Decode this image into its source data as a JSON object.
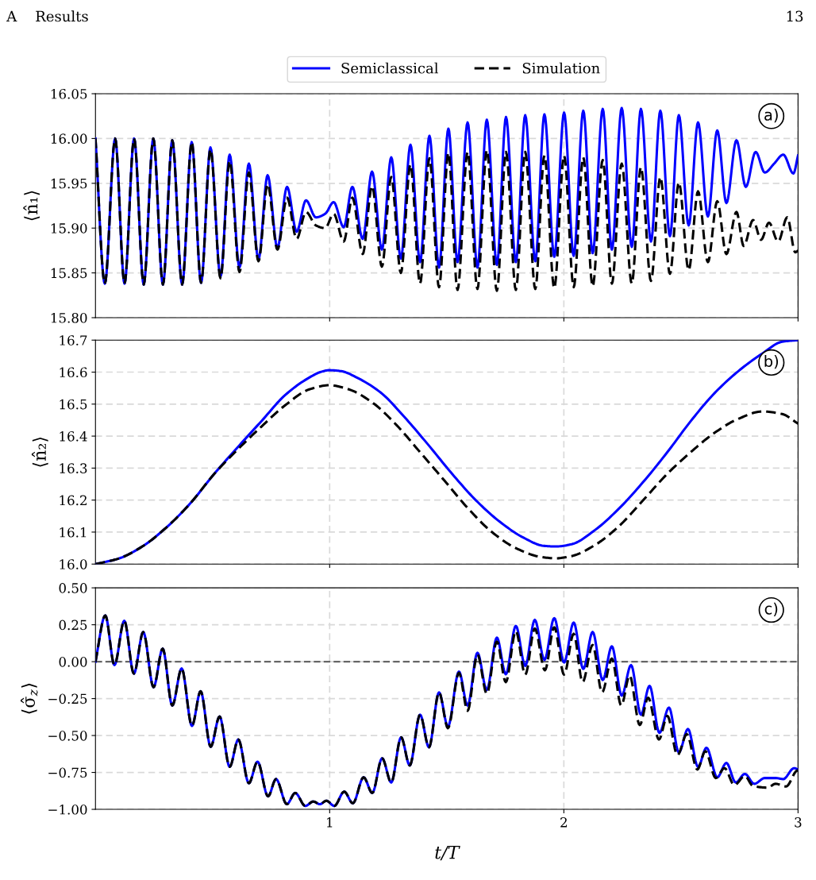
{
  "chart_data": [
    {
      "type": "line",
      "ylabel": "⟨n̂₁⟩",
      "annotations": [
        "A    Results",
        "13",
        "a)"
      ],
      "legend": "top",
      "grid": true,
      "tick_labels": "y",
      "xlim": [
        0,
        3
      ],
      "xticks": [
        1,
        2,
        3
      ],
      "ylim": [
        15.8,
        16.05
      ],
      "yticks": [
        {
          "value": 15.8,
          "label": "15.80"
        },
        {
          "value": 15.85,
          "label": "15.85"
        },
        {
          "value": 15.9,
          "label": "15.90"
        },
        {
          "value": 15.95,
          "label": "15.95"
        },
        {
          "value": 16.0,
          "label": "16.00"
        },
        {
          "value": 16.05,
          "label": "16.05"
        }
      ],
      "series": [
        {
          "name": "Semiclassical",
          "color": "#0000ff",
          "line_style": "solid",
          "x": [
            0,
            0.04,
            0.084,
            0.124,
            0.165,
            0.206,
            0.247,
            0.288,
            0.328,
            0.37,
            0.411,
            0.451,
            0.491,
            0.534,
            0.573,
            0.615,
            0.655,
            0.696,
            0.735,
            0.777,
            0.818,
            0.859,
            0.899,
            0.941,
            0.981,
            1.017,
            1.06,
            1.097,
            1.141,
            1.181,
            1.223,
            1.263,
            1.304,
            1.345,
            1.386,
            1.426,
            1.467,
            1.507,
            1.546,
            1.589,
            1.631,
            1.671,
            1.714,
            1.753,
            1.795,
            1.835,
            1.878,
            1.917,
            1.959,
            2.001,
            2.042,
            2.083,
            2.123,
            2.166,
            2.205,
            2.247,
            2.29,
            2.329,
            2.372,
            2.412,
            2.453,
            2.491,
            2.533,
            2.573,
            2.615,
            2.655,
            2.694,
            2.737,
            2.777,
            2.819,
            2.858,
            2.898,
            2.937,
            2.98,
            3.0
          ],
          "values": [
            16.0,
            15.838,
            16.0,
            15.838,
            16.0,
            15.837,
            16.0,
            15.837,
            15.998,
            15.837,
            15.996,
            15.839,
            15.99,
            15.846,
            15.982,
            15.856,
            15.972,
            15.865,
            15.959,
            15.878,
            15.946,
            15.896,
            15.931,
            15.912,
            15.916,
            15.929,
            15.901,
            15.946,
            15.888,
            15.963,
            15.876,
            15.979,
            15.866,
            15.993,
            15.862,
            16.003,
            15.856,
            16.011,
            15.862,
            16.018,
            15.856,
            16.021,
            15.859,
            16.024,
            15.862,
            16.026,
            15.863,
            16.027,
            15.868,
            16.029,
            15.869,
            16.031,
            15.872,
            16.033,
            15.876,
            16.034,
            15.879,
            16.033,
            15.885,
            16.031,
            15.891,
            16.026,
            15.903,
            16.018,
            15.913,
            16.009,
            15.928,
            15.998,
            15.946,
            15.985,
            15.962,
            15.972,
            15.982,
            15.961,
            15.981
          ]
        },
        {
          "name": "Simulation",
          "color": "#000000",
          "line_style": "dashed",
          "x": [
            0,
            0.04,
            0.084,
            0.124,
            0.165,
            0.206,
            0.247,
            0.288,
            0.328,
            0.37,
            0.411,
            0.451,
            0.491,
            0.534,
            0.573,
            0.615,
            0.655,
            0.696,
            0.735,
            0.777,
            0.818,
            0.859,
            0.899,
            0.941,
            0.981,
            1.017,
            1.06,
            1.097,
            1.141,
            1.181,
            1.223,
            1.263,
            1.304,
            1.345,
            1.386,
            1.426,
            1.467,
            1.507,
            1.546,
            1.589,
            1.631,
            1.671,
            1.714,
            1.753,
            1.795,
            1.835,
            1.878,
            1.917,
            1.959,
            2.001,
            2.042,
            2.083,
            2.123,
            2.166,
            2.205,
            2.247,
            2.29,
            2.329,
            2.372,
            2.412,
            2.453,
            2.491,
            2.533,
            2.573,
            2.615,
            2.655,
            2.694,
            2.737,
            2.768,
            2.808,
            2.842,
            2.876,
            2.915,
            2.954,
            2.988,
            3.0
          ],
          "values": [
            16.0,
            15.838,
            16.0,
            15.838,
            16.0,
            15.837,
            16.0,
            15.837,
            15.998,
            15.837,
            15.996,
            15.839,
            15.988,
            15.844,
            15.975,
            15.851,
            15.962,
            15.863,
            15.949,
            15.876,
            15.934,
            15.888,
            15.918,
            15.903,
            15.9,
            15.916,
            15.885,
            15.934,
            15.871,
            15.947,
            15.857,
            15.957,
            15.85,
            15.971,
            15.838,
            15.978,
            15.834,
            15.984,
            15.831,
            15.985,
            15.832,
            15.987,
            15.83,
            15.985,
            15.831,
            15.985,
            15.832,
            15.981,
            15.833,
            15.981,
            15.834,
            15.979,
            15.835,
            15.976,
            15.838,
            15.972,
            15.838,
            15.968,
            15.841,
            15.957,
            15.849,
            15.951,
            15.853,
            15.941,
            15.862,
            15.93,
            15.871,
            15.918,
            15.88,
            15.909,
            15.887,
            15.906,
            15.885,
            15.912,
            15.873,
            15.875
          ]
        }
      ]
    },
    {
      "type": "line",
      "ylabel": "⟨n̂₂⟩",
      "annotations": [
        "b)"
      ],
      "grid": true,
      "tick_labels": "y",
      "xlim": [
        0,
        3
      ],
      "xticks": [
        1,
        2,
        3
      ],
      "ylim": [
        16.0,
        16.7
      ],
      "yticks": [
        {
          "value": 16.0,
          "label": "16.0"
        },
        16.1,
        16.2,
        16.3,
        16.4,
        16.5,
        16.6,
        16.7
      ],
      "series": [
        {
          "color": "#0000ff",
          "line_style": "solid",
          "x": [
            0,
            0.098,
            0.2,
            0.302,
            0.404,
            0.506,
            0.607,
            0.709,
            0.811,
            0.913,
            0.964,
            0.998,
            1.049,
            1.116,
            1.218,
            1.32,
            1.422,
            1.524,
            1.625,
            1.727,
            1.829,
            1.914,
            1.965,
            2.033,
            2.134,
            2.236,
            2.338,
            2.44,
            2.542,
            2.643,
            2.745,
            2.847,
            2.932,
            3.0
          ],
          "values": [
            16.0,
            16.017,
            16.055,
            16.114,
            16.189,
            16.281,
            16.365,
            16.447,
            16.529,
            16.583,
            16.601,
            16.606,
            16.603,
            16.583,
            16.536,
            16.459,
            16.372,
            16.281,
            16.199,
            16.132,
            16.082,
            16.057,
            16.055,
            16.062,
            16.107,
            16.174,
            16.256,
            16.348,
            16.447,
            16.534,
            16.603,
            16.658,
            16.695,
            16.7
          ]
        },
        {
          "color": "#000000",
          "line_style": "dashed",
          "x": [
            0,
            0.098,
            0.2,
            0.302,
            0.404,
            0.506,
            0.607,
            0.709,
            0.811,
            0.913,
            0.998,
            1.082,
            1.184,
            1.286,
            1.388,
            1.49,
            1.591,
            1.693,
            1.795,
            1.897,
            1.965,
            2.033,
            2.134,
            2.236,
            2.338,
            2.44,
            2.542,
            2.643,
            2.745,
            2.847,
            2.932,
            3.0
          ],
          "values": [
            16.0,
            16.017,
            16.055,
            16.114,
            16.189,
            16.281,
            16.358,
            16.43,
            16.497,
            16.546,
            16.559,
            16.546,
            16.504,
            16.434,
            16.348,
            16.261,
            16.174,
            16.1,
            16.05,
            16.023,
            16.018,
            16.025,
            16.06,
            16.119,
            16.199,
            16.281,
            16.35,
            16.41,
            16.454,
            16.477,
            16.469,
            16.439
          ]
        }
      ]
    },
    {
      "type": "line",
      "ylabel": "⟨σ̂$_{z}$⟩",
      "xlabel": "t/T",
      "annotations": [
        "c)"
      ],
      "grid": true,
      "xlim": [
        0,
        3
      ],
      "xticks": [
        1,
        2,
        3
      ],
      "ylim": [
        -1.0,
        0.5
      ],
      "yticks": [
        {
          "value": -1.0,
          "label": "−1.00"
        },
        {
          "value": -0.75,
          "label": "−0.75"
        },
        {
          "value": -0.5,
          "label": "−0.50"
        },
        {
          "value": -0.25,
          "label": "−0.25"
        },
        {
          "value": 0,
          "label": "0.00"
        },
        0.25,
        {
          "value": 0.5,
          "label": "0.50"
        }
      ],
      "ref_lines": [
        {
          "axis": "y",
          "value": 0,
          "color": "#666666",
          "line_style": "dashed"
        }
      ],
      "series": [
        {
          "color": "#0000ff",
          "line_style": "solid",
          "x": [
            0,
            0.042,
            0.081,
            0.123,
            0.164,
            0.204,
            0.248,
            0.287,
            0.328,
            0.368,
            0.412,
            0.449,
            0.492,
            0.53,
            0.573,
            0.61,
            0.655,
            0.692,
            0.737,
            0.771,
            0.817,
            0.853,
            0.896,
            0.93,
            0.958,
            0.986,
            1.02,
            1.062,
            1.099,
            1.145,
            1.182,
            1.224,
            1.263,
            1.305,
            1.342,
            1.386,
            1.424,
            1.467,
            1.505,
            1.552,
            1.589,
            1.631,
            1.671,
            1.714,
            1.752,
            1.795,
            1.835,
            1.876,
            1.917,
            1.959,
            2.001,
            2.042,
            2.083,
            2.123,
            2.166,
            2.205,
            2.247,
            2.287,
            2.329,
            2.366,
            2.408,
            2.449,
            2.491,
            2.53,
            2.573,
            2.609,
            2.655,
            2.694,
            2.734,
            2.773,
            2.813,
            2.858,
            2.904,
            2.937,
            2.983,
            3.0
          ],
          "values": [
            0.0,
            0.313,
            -0.023,
            0.277,
            -0.081,
            0.201,
            -0.173,
            0.088,
            -0.297,
            -0.046,
            -0.435,
            -0.2,
            -0.576,
            -0.371,
            -0.712,
            -0.527,
            -0.823,
            -0.677,
            -0.912,
            -0.795,
            -0.965,
            -0.889,
            -0.977,
            -0.947,
            -0.965,
            -0.942,
            -0.977,
            -0.88,
            -0.959,
            -0.783,
            -0.889,
            -0.654,
            -0.818,
            -0.512,
            -0.703,
            -0.359,
            -0.58,
            -0.208,
            -0.44,
            -0.067,
            -0.297,
            0.06,
            -0.191,
            0.163,
            -0.085,
            0.242,
            -0.028,
            0.283,
            0.012,
            0.295,
            -0.005,
            0.265,
            -0.049,
            0.201,
            -0.124,
            0.104,
            -0.23,
            -0.023,
            -0.359,
            -0.164,
            -0.482,
            -0.311,
            -0.615,
            -0.456,
            -0.712,
            -0.583,
            -0.783,
            -0.686,
            -0.818,
            -0.76,
            -0.827,
            -0.788,
            -0.788,
            -0.795,
            -0.721,
            -0.73
          ]
        },
        {
          "color": "#000000",
          "line_style": "dashed",
          "x": [
            0,
            0.042,
            0.081,
            0.123,
            0.164,
            0.204,
            0.248,
            0.287,
            0.328,
            0.368,
            0.412,
            0.449,
            0.492,
            0.53,
            0.573,
            0.61,
            0.655,
            0.692,
            0.737,
            0.771,
            0.817,
            0.853,
            0.896,
            0.93,
            0.958,
            0.986,
            1.02,
            1.062,
            1.099,
            1.145,
            1.182,
            1.224,
            1.263,
            1.305,
            1.342,
            1.386,
            1.424,
            1.467,
            1.505,
            1.552,
            1.589,
            1.631,
            1.671,
            1.714,
            1.752,
            1.795,
            1.835,
            1.876,
            1.919,
            1.959,
            2.001,
            2.042,
            2.08,
            2.123,
            2.163,
            2.205,
            2.245,
            2.281,
            2.324,
            2.36,
            2.406,
            2.442,
            2.485,
            2.525,
            2.57,
            2.604,
            2.649,
            2.686,
            2.728,
            2.773,
            2.807,
            2.87,
            2.904,
            2.949,
            2.994,
            3.0
          ],
          "values": [
            0.0,
            0.313,
            -0.023,
            0.277,
            -0.081,
            0.201,
            -0.173,
            0.088,
            -0.297,
            -0.046,
            -0.435,
            -0.2,
            -0.576,
            -0.371,
            -0.712,
            -0.527,
            -0.823,
            -0.677,
            -0.912,
            -0.795,
            -0.965,
            -0.889,
            -0.977,
            -0.947,
            -0.965,
            -0.942,
            -0.977,
            -0.88,
            -0.959,
            -0.783,
            -0.889,
            -0.654,
            -0.818,
            -0.512,
            -0.703,
            -0.359,
            -0.58,
            -0.208,
            -0.45,
            -0.076,
            -0.332,
            0.048,
            -0.217,
            0.136,
            -0.138,
            0.207,
            -0.088,
            0.224,
            -0.058,
            0.233,
            -0.088,
            0.189,
            -0.138,
            0.113,
            -0.208,
            0.021,
            -0.297,
            -0.094,
            -0.429,
            -0.244,
            -0.527,
            -0.367,
            -0.633,
            -0.491,
            -0.73,
            -0.606,
            -0.788,
            -0.721,
            -0.836,
            -0.774,
            -0.841,
            -0.853,
            -0.827,
            -0.845,
            -0.739,
            -0.735
          ]
        }
      ]
    }
  ]
}
